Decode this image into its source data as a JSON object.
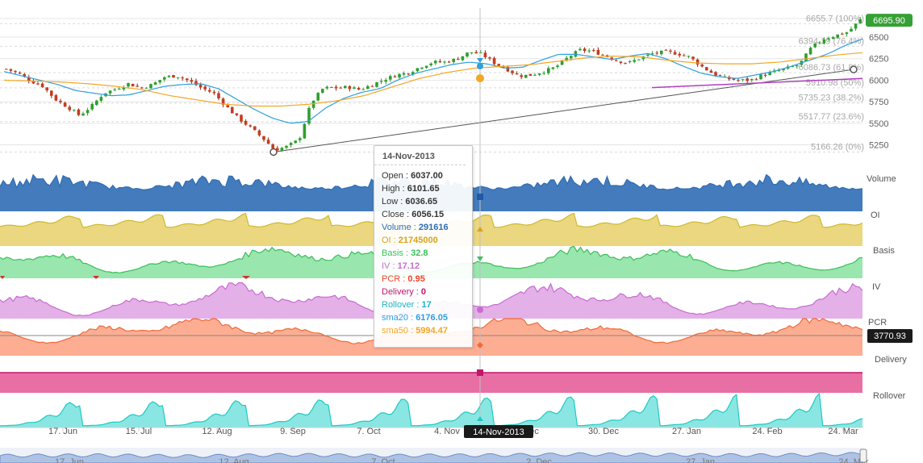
{
  "chart_data": {
    "type": "line",
    "price_axis": {
      "ticks": [
        5250,
        5500,
        5750,
        6000,
        6250,
        6500
      ],
      "ylim": [
        5030,
        6800
      ]
    },
    "last_price_badge": "6695.90",
    "pcr_last_badge": "3770.93",
    "x_tick_labels": [
      "17. Jun",
      "15. Jul",
      "12. Aug",
      "9. Sep",
      "7. Oct",
      "4. Nov",
      "2. Dec",
      "30. Dec",
      "27. Jan",
      "24. Feb",
      "24. Mar"
    ],
    "navigator_labels": [
      "17. Jun",
      "12. Aug",
      "7. Oct",
      "2. Dec",
      "27. Jan",
      "24. Mar"
    ],
    "fib_levels": [
      {
        "label": "6655.7 (100%)",
        "value": 6655.7
      },
      {
        "label": "6394.19 (76.4%)",
        "value": 6394.19
      },
      {
        "label": "6086.73 (61.8%)",
        "value": 6086.73
      },
      {
        "label": "5910.98 (50%)",
        "value": 5910.98
      },
      {
        "label": "5735.23 (38.2%)",
        "value": 5735.23
      },
      {
        "label": "5517.77 (23.6%)",
        "value": 5517.77
      },
      {
        "label": "5166.26 (0%)",
        "value": 5166.26
      }
    ],
    "panes": [
      {
        "name": "Volume",
        "color": "#2f6db5"
      },
      {
        "name": "OI",
        "color": "#d8c035"
      },
      {
        "name": "Basis",
        "color": "#3bbf5a"
      },
      {
        "name": "IV",
        "color": "#c86ccf"
      },
      {
        "name": "PCR",
        "color": "#f26a38"
      },
      {
        "name": "Delivery",
        "color": "#d5207a"
      },
      {
        "name": "Rollover",
        "color": "#1fc9c3"
      }
    ],
    "price_series_anchors": [
      6130,
      6080,
      5990,
      5930,
      5780,
      5690,
      5590,
      5700,
      5850,
      5900,
      5960,
      5910,
      5950,
      6040,
      6050,
      5990,
      5910,
      5850,
      5700,
      5560,
      5450,
      5330,
      5190,
      5230,
      5310,
      5740,
      5910,
      5910,
      5920,
      5890,
      5950,
      6010,
      6060,
      6090,
      6160,
      6210,
      6210,
      6250,
      6330,
      6300,
      6200,
      6130,
      6050,
      6060,
      6100,
      6150,
      6260,
      6350,
      6340,
      6290,
      6230,
      6200,
      6260,
      6310,
      6330,
      6310,
      6270,
      6160,
      6070,
      6020,
      6000,
      6000,
      6060,
      6100,
      6140,
      6180,
      6380,
      6480,
      6520,
      6560,
      6700
    ],
    "sma20_anchors": [
      6100,
      6050,
      6000,
      5950,
      5880,
      5850,
      5820,
      5830,
      5880,
      5930,
      5950,
      5960,
      5900,
      5780,
      5660,
      5560,
      5500,
      5520,
      5680,
      5790,
      5860,
      5900,
      6000,
      6080,
      6130,
      6180,
      6210,
      6190,
      6140,
      6150,
      6230,
      6300,
      6300,
      6270,
      6240,
      6280,
      6310,
      6250,
      6160,
      6080,
      6040,
      6020,
      6060,
      6100,
      6160,
      6230,
      6300,
      6400,
      6480
    ],
    "sma50_anchors": [
      6000,
      5990,
      5980,
      5960,
      5930,
      5890,
      5820,
      5770,
      5720,
      5700,
      5700,
      5720,
      5760,
      5820,
      5920,
      6020,
      6090,
      6140,
      6160,
      6180,
      6220,
      6260,
      6280,
      6270,
      6230,
      6200,
      6190,
      6190,
      6210,
      6250,
      6290,
      6320
    ],
    "tooltip": {
      "date": "14-Nov-2013",
      "rows": [
        {
          "label": "Open : ",
          "value": "6037.00",
          "color": "#333333"
        },
        {
          "label": "High : ",
          "value": "6101.65",
          "color": "#333333"
        },
        {
          "label": "Low : ",
          "value": "6036.65",
          "color": "#333333"
        },
        {
          "label": "Close : ",
          "value": "6056.15",
          "color": "#333333"
        },
        {
          "label": "Volume : ",
          "value": "291616",
          "color": "#2f6db5"
        },
        {
          "label": "OI : ",
          "value": "21745000",
          "color": "#d8a21a"
        },
        {
          "label": "Basis : ",
          "value": "32.8",
          "color": "#3bbf5a"
        },
        {
          "label": "IV : ",
          "value": "17.12",
          "color": "#c86ccf"
        },
        {
          "label": "PCR : ",
          "value": "0.95",
          "color": "#f2442a"
        },
        {
          "label": "Delivery : ",
          "value": "0",
          "color": "#c4166a"
        },
        {
          "label": "Rollover : ",
          "value": "17",
          "color": "#1fb3c4"
        },
        {
          "label": "sma20 : ",
          "value": "6176.05",
          "color": "#2f9fe0"
        },
        {
          "label": "sma50 : ",
          "value": "5994.47",
          "color": "#f5a623"
        }
      ]
    },
    "crosshair_date_label": "14-Nov-2013"
  }
}
